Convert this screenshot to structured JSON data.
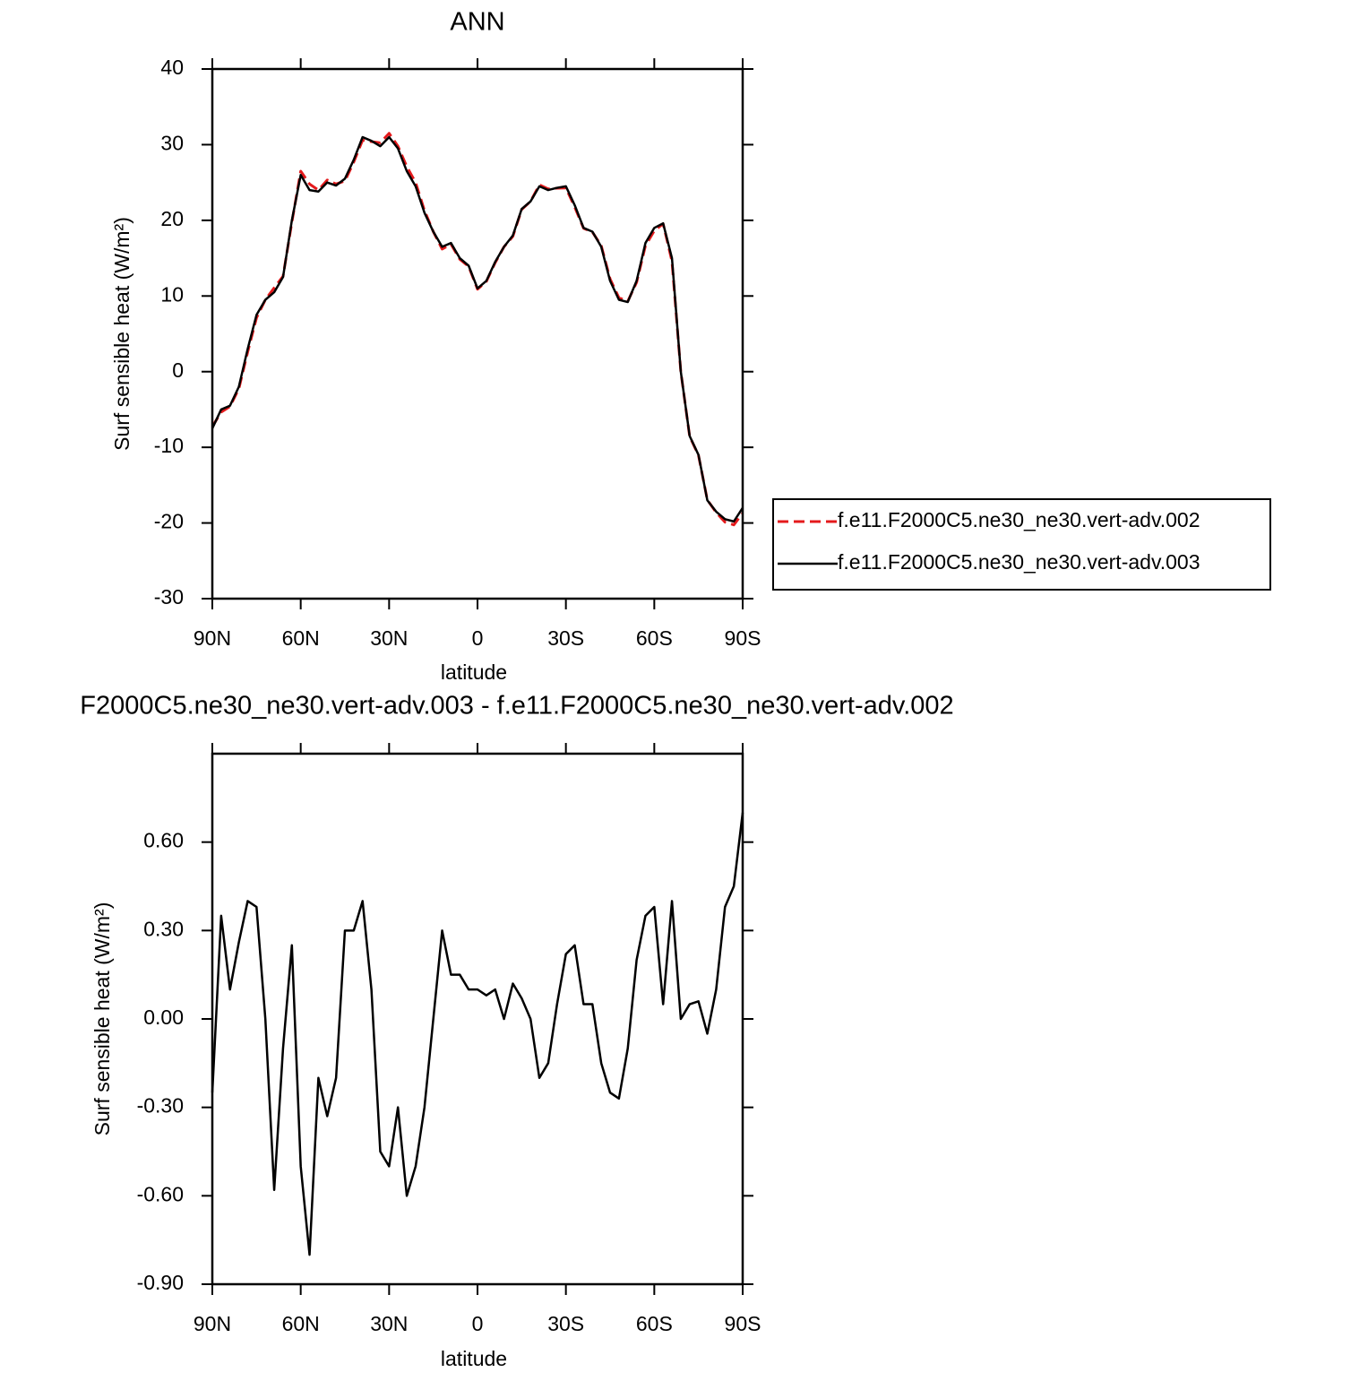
{
  "chart_data": [
    {
      "type": "line",
      "title": "ANN",
      "xlabel": "latitude",
      "ylabel": "Surf sensible heat (W/m²)",
      "x": [
        90,
        87,
        84,
        81,
        78,
        75,
        72,
        69,
        66,
        63,
        60,
        57,
        54,
        51,
        48,
        45,
        42,
        39,
        36,
        33,
        30,
        27,
        24,
        21,
        18,
        15,
        12,
        9,
        6,
        3,
        0,
        -3,
        -6,
        -9,
        -12,
        -15,
        -18,
        -21,
        -24,
        -27,
        -30,
        -33,
        -36,
        -39,
        -42,
        -45,
        -48,
        -51,
        -54,
        -57,
        -60,
        -63,
        -66,
        -69,
        -72,
        -75,
        -78,
        -81,
        -84,
        -87,
        -90
      ],
      "series": [
        {
          "name": "f.e11.F2000C5.ne30_ne30.vert-adv.002",
          "color": "#e41a1c",
          "dash": true,
          "values": [
            -7.25,
            -5.35,
            -4.6,
            -2.26,
            2.6,
            7.12,
            9.5,
            11.08,
            12.6,
            19.75,
            26.5,
            24.8,
            24,
            25.33,
            24.8,
            25.2,
            27.7,
            30.6,
            30.4,
            30.25,
            31.5,
            29.8,
            27.1,
            25,
            21.3,
            18.5,
            16.2,
            16.85,
            14.85,
            13.9,
            10.9,
            11.92,
            14.4,
            16.5,
            17.88,
            21.43,
            22.5,
            24.7,
            24.15,
            24.25,
            24.28,
            21.75,
            18.95,
            18.45,
            16.65,
            12.25,
            9.77,
            9.3,
            11.8,
            16.65,
            18.62,
            19.55,
            14.6,
            0,
            -8.55,
            -11.06,
            -16.95,
            -18.6,
            -19.88,
            -20.25,
            -18.7
          ]
        },
        {
          "name": "f.e11.F2000C5.ne30_ne30.vert-adv.003",
          "color": "#000000",
          "dash": false,
          "values": [
            -7.5,
            -5,
            -4.5,
            -2,
            3,
            7.5,
            9.5,
            10.5,
            12.5,
            20,
            26,
            24,
            23.8,
            25,
            24.6,
            25.5,
            28,
            31,
            30.5,
            29.8,
            31,
            29.5,
            26.5,
            24.5,
            21,
            18.5,
            16.5,
            17,
            15,
            14,
            11,
            12,
            14.5,
            16.5,
            18,
            21.5,
            22.5,
            24.5,
            24,
            24.3,
            24.5,
            22,
            19,
            18.5,
            16.5,
            12,
            9.5,
            9.2,
            12,
            17,
            19,
            19.6,
            15,
            0,
            -8.5,
            -11,
            -17,
            -18.5,
            -19.5,
            -19.8,
            -18
          ]
        }
      ],
      "xlim": [
        90,
        -90
      ],
      "xticks": [
        {
          "value": 90,
          "label": "90N"
        },
        {
          "value": 60,
          "label": "60N"
        },
        {
          "value": 30,
          "label": "30N"
        },
        0,
        {
          "value": -30,
          "label": "30S"
        },
        {
          "value": -60,
          "label": "60S"
        },
        {
          "value": -90,
          "label": "90S"
        }
      ],
      "ylim": [
        -30,
        40
      ],
      "yticks": [
        -30,
        -20,
        -10,
        0,
        10,
        20,
        30,
        40
      ],
      "legend": "right"
    },
    {
      "type": "line",
      "title": "F2000C5.ne30_ne30.vert-adv.003 - f.e11.F2000C5.ne30_ne30.vert-adv.002",
      "xlabel": "latitude",
      "ylabel": "Surf sensible heat (W/m²)",
      "x": [
        90,
        87,
        84,
        81,
        78,
        75,
        72,
        69,
        66,
        63,
        60,
        57,
        54,
        51,
        48,
        45,
        42,
        39,
        36,
        33,
        30,
        27,
        24,
        21,
        18,
        15,
        12,
        9,
        6,
        3,
        0,
        -3,
        -6,
        -9,
        -12,
        -15,
        -18,
        -21,
        -24,
        -27,
        -30,
        -33,
        -36,
        -39,
        -42,
        -45,
        -48,
        -51,
        -54,
        -57,
        -60,
        -63,
        -66,
        -69,
        -72,
        -75,
        -78,
        -81,
        -84,
        -87,
        -90
      ],
      "series": [
        {
          "color": "#000000",
          "dash": false,
          "values": [
            -0.25,
            0.35,
            0.1,
            0.26,
            0.4,
            0.38,
            0,
            -0.58,
            -0.1,
            0.25,
            -0.5,
            -0.8,
            -0.2,
            -0.33,
            -0.2,
            0.3,
            0.3,
            0.4,
            0.1,
            -0.45,
            -0.5,
            -0.3,
            -0.6,
            -0.5,
            -0.3,
            0,
            0.3,
            0.15,
            0.15,
            0.1,
            0.1,
            0.08,
            0.1,
            0,
            0.12,
            0.07,
            0,
            -0.2,
            -0.15,
            0.05,
            0.22,
            0.25,
            0.05,
            0.05,
            -0.15,
            -0.25,
            -0.27,
            -0.1,
            0.2,
            0.35,
            0.38,
            0.05,
            0.4,
            0,
            0.05,
            0.06,
            -0.05,
            0.1,
            0.38,
            0.45,
            0.7
          ]
        }
      ],
      "xlim": [
        90,
        -90
      ],
      "xticks": [
        {
          "value": 90,
          "label": "90N"
        },
        {
          "value": 60,
          "label": "60N"
        },
        {
          "value": 30,
          "label": "30N"
        },
        0,
        {
          "value": -30,
          "label": "30S"
        },
        {
          "value": -60,
          "label": "60S"
        },
        {
          "value": -90,
          "label": "90S"
        }
      ],
      "ylim": [
        -0.9,
        0.9
      ],
      "yticks": [
        {
          "value": -0.9,
          "label": "-0.90"
        },
        {
          "value": -0.6,
          "label": "-0.60"
        },
        {
          "value": -0.3,
          "label": "-0.30"
        },
        {
          "value": 0,
          "label": "0.00"
        },
        {
          "value": 0.3,
          "label": "0.30"
        },
        {
          "value": 0.6,
          "label": "0.60"
        }
      ]
    }
  ]
}
